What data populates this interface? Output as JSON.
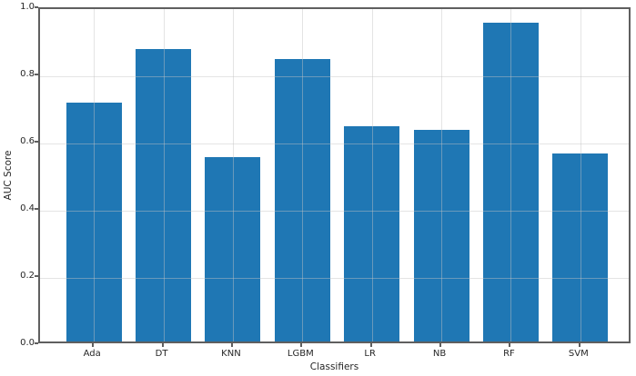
{
  "figure": {
    "background_color": "#ffffff",
    "spine_color": "#5f5f5f",
    "grid_color": "#d9d9d9",
    "text_color": "#262626"
  },
  "chart_data": {
    "type": "bar",
    "title": "",
    "xlabel": "Classifiers",
    "ylabel": "AUC Score",
    "categories": [
      "Ada",
      "DT",
      "KNN",
      "LGBM",
      "LR",
      "NB",
      "RF",
      "SVM"
    ],
    "values": [
      0.71,
      0.87,
      0.55,
      0.84,
      0.64,
      0.63,
      0.95,
      0.56
    ],
    "bar_color": "#1f77b4",
    "ylim": [
      0.0,
      1.0
    ],
    "yticks": [
      0.0,
      0.2,
      0.4,
      0.6,
      0.8,
      1.0
    ],
    "ytick_labels": [
      "0.0",
      "0.2",
      "0.4",
      "0.6",
      "0.8",
      "1.0"
    ],
    "grid": "on",
    "grid_overlays_bars": true,
    "legend_position": "none"
  }
}
